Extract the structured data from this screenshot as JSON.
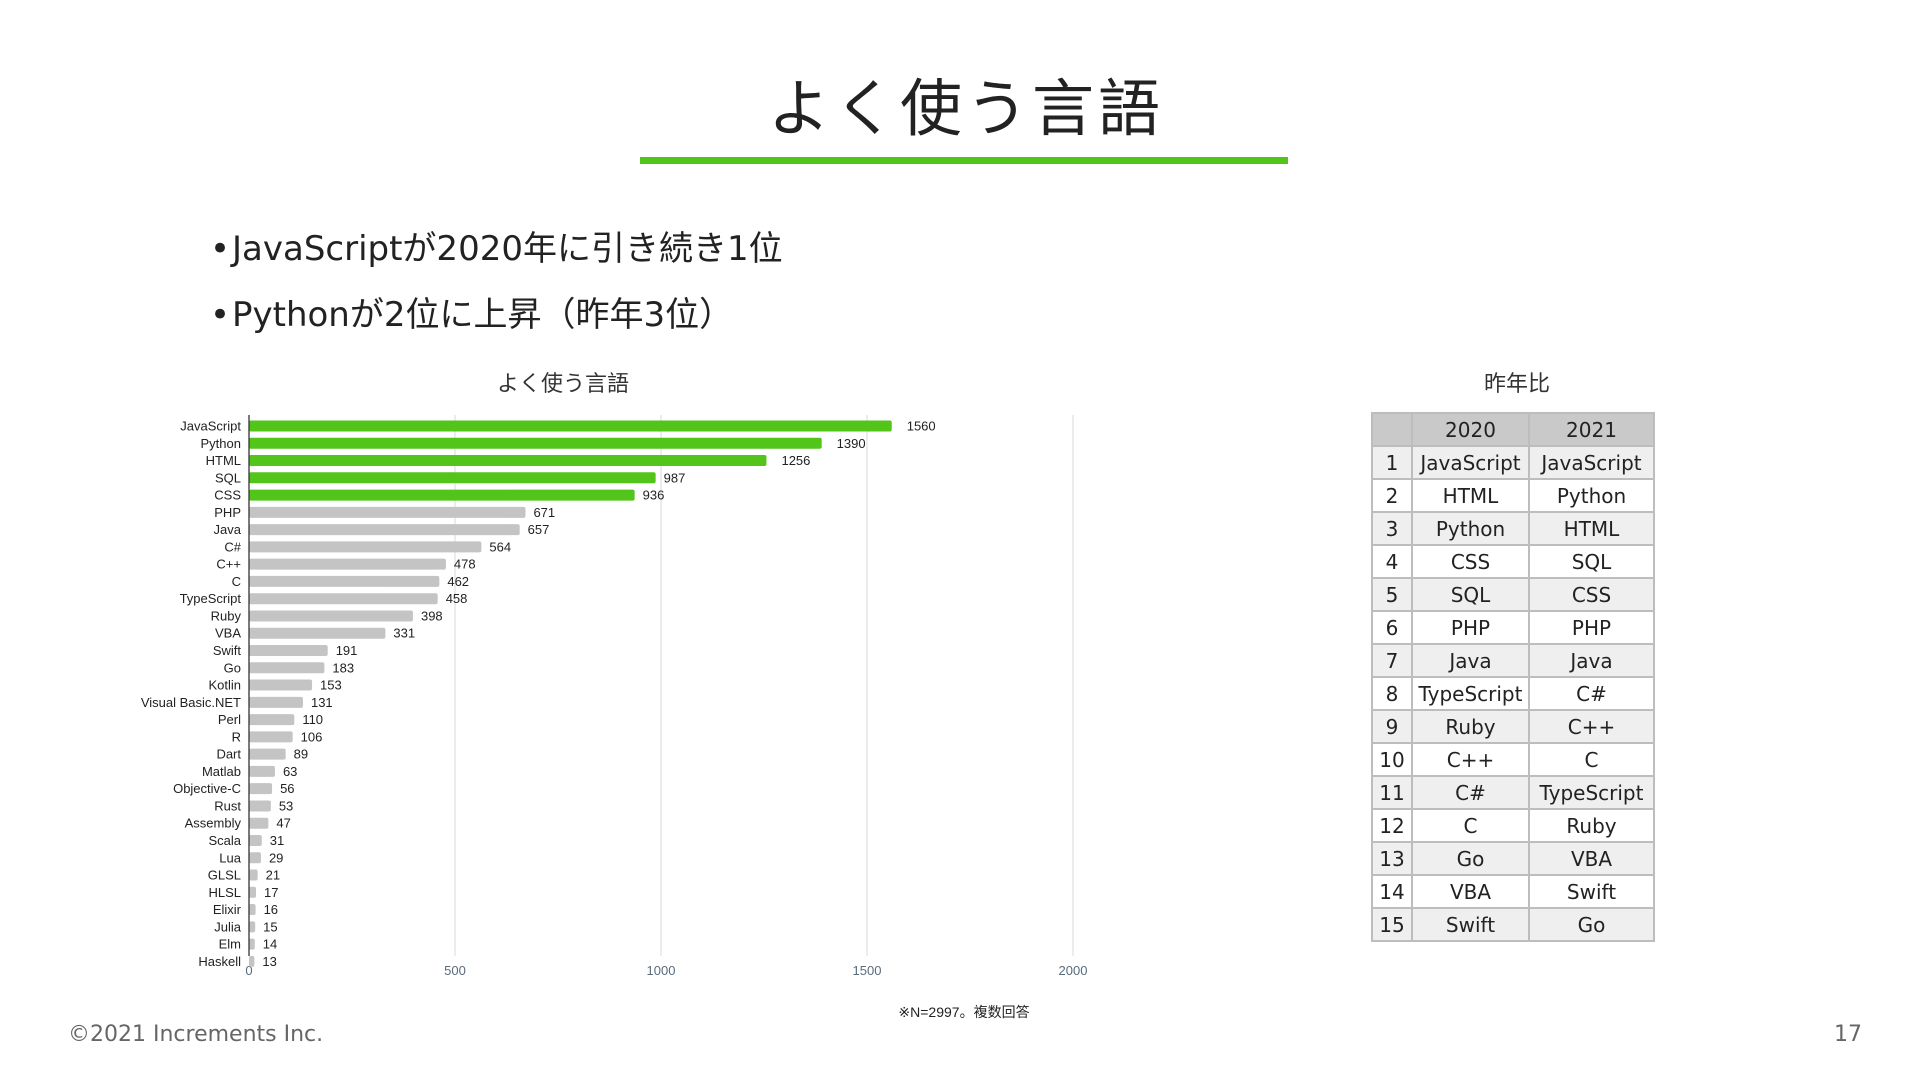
{
  "slide": {
    "title": "よく使う言語",
    "accent_color": "#52c41a",
    "bullets": [
      "JavaScriptが2020年に引き続き1位",
      "Pythonが2位に上昇（昨年3位）"
    ],
    "footer": "©2021 Increments Inc.",
    "page_number": "17"
  },
  "chart_data": {
    "type": "bar",
    "orientation": "horizontal",
    "title": "よく使う言語",
    "note": "※N=2997。複数回答",
    "xlabel": "",
    "ylabel": "",
    "xlim": [
      0,
      2000
    ],
    "xticks": [
      "0",
      "500",
      "1000",
      "1500",
      "2000"
    ],
    "grid": true,
    "highlight_color": "#52c41a",
    "base_color": "#c4c4c4",
    "highlight_top_n": 5,
    "categories": [
      "JavaScript",
      "Python",
      "HTML",
      "SQL",
      "CSS",
      "PHP",
      "Java",
      "C#",
      "C++",
      "C",
      "TypeScript",
      "Ruby",
      "VBA",
      "Swift",
      "Go",
      "Kotlin",
      "Visual Basic.NET",
      "Perl",
      "R",
      "Dart",
      "Matlab",
      "Objective-C",
      "Rust",
      "Assembly",
      "Scala",
      "Lua",
      "GLSL",
      "HLSL",
      "Elixir",
      "Julia",
      "Elm",
      "Haskell"
    ],
    "values": [
      1560,
      1390,
      1256,
      987,
      936,
      671,
      657,
      564,
      478,
      462,
      458,
      398,
      331,
      191,
      183,
      153,
      131,
      110,
      106,
      89,
      63,
      56,
      53,
      47,
      31,
      29,
      21,
      17,
      16,
      15,
      14,
      13
    ]
  },
  "comparison_table": {
    "title": "昨年比",
    "headers": [
      "",
      "2020",
      "2021"
    ],
    "rows": [
      [
        "1",
        "JavaScript",
        "JavaScript"
      ],
      [
        "2",
        "HTML",
        "Python"
      ],
      [
        "3",
        "Python",
        "HTML"
      ],
      [
        "4",
        "CSS",
        "SQL"
      ],
      [
        "5",
        "SQL",
        "CSS"
      ],
      [
        "6",
        "PHP",
        "PHP"
      ],
      [
        "7",
        "Java",
        "Java"
      ],
      [
        "8",
        "TypeScript",
        "C#"
      ],
      [
        "9",
        "Ruby",
        "C++"
      ],
      [
        "10",
        "C++",
        "C"
      ],
      [
        "11",
        "C#",
        "TypeScript"
      ],
      [
        "12",
        "C",
        "Ruby"
      ],
      [
        "13",
        "Go",
        "VBA"
      ],
      [
        "14",
        "VBA",
        "Swift"
      ],
      [
        "15",
        "Swift",
        "Go"
      ]
    ]
  }
}
